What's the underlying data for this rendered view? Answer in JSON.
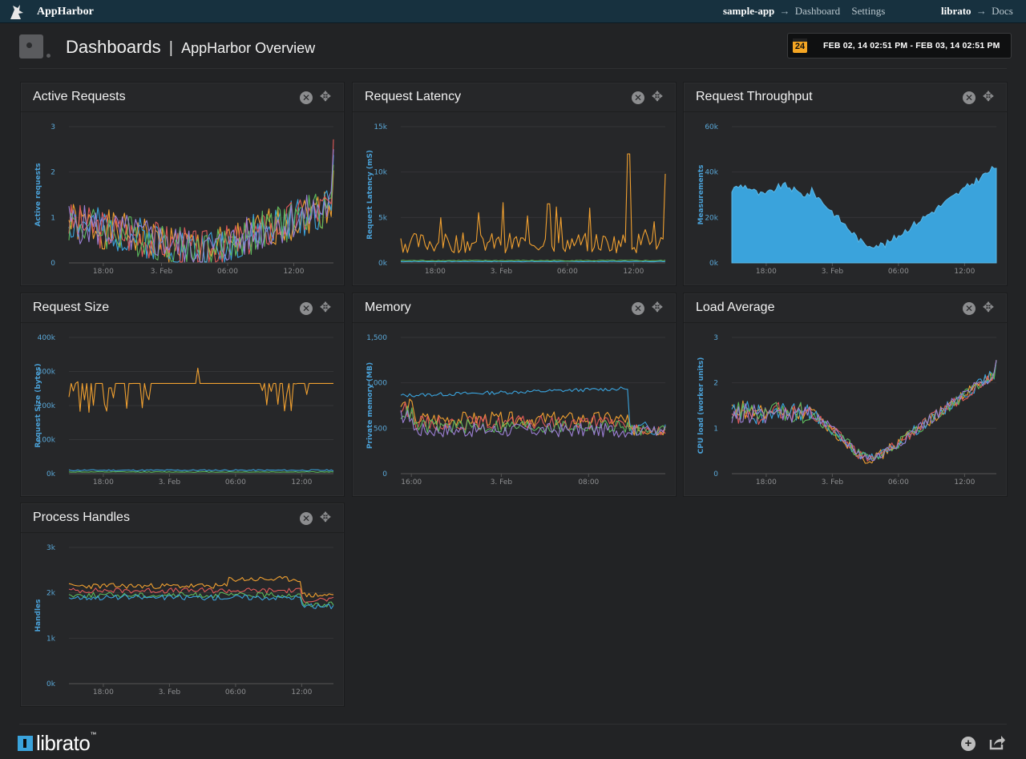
{
  "topbar": {
    "brand": "AppHarbor",
    "app": "sample-app",
    "dashboard_link": "Dashboard",
    "settings_link": "Settings",
    "addon": "librato",
    "docs_link": "Docs",
    "arrow": "→"
  },
  "header": {
    "title": "Dashboards",
    "separator": "|",
    "subtitle": "AppHarbor Overview",
    "calendar_day": "24",
    "date_range": "FEB 02, 14 02:51 PM - FEB 03, 14 02:51 PM"
  },
  "panels": [
    {
      "title": "Active Requests"
    },
    {
      "title": "Request Latency"
    },
    {
      "title": "Request Throughput"
    },
    {
      "title": "Request Size"
    },
    {
      "title": "Memory"
    },
    {
      "title": "Load Average"
    },
    {
      "title": "Process Handles"
    }
  ],
  "footer": {
    "logo": "librato",
    "tm": "™"
  },
  "colors": {
    "topbar_bg": "#17313f",
    "page_bg": "#222325",
    "panel_bg": "#262729",
    "accent_blue": "#4aa0d6",
    "series": [
      "#f0a030",
      "#3aa3dc",
      "#e05a5a",
      "#5cb85c",
      "#9b7fd4",
      "#f08a5d"
    ]
  },
  "icons": [
    "wizard-logo-icon",
    "dashboard-icon",
    "calendar-icon",
    "close-icon",
    "move-icon",
    "add-icon",
    "share-icon"
  ],
  "chart_data": [
    {
      "type": "line",
      "title": "Active Requests",
      "ylabel": "Active requests",
      "yticks": [
        "0",
        "1",
        "2",
        "3"
      ],
      "ylim": [
        0,
        3
      ],
      "xticks": [
        "18:00",
        "3. Feb",
        "06:00",
        "12:00"
      ],
      "xtick_pos": [
        0.13,
        0.35,
        0.6,
        0.85
      ],
      "grid": true,
      "series": [
        {
          "color": "#f0a030",
          "shape": "act",
          "spread": 0.35,
          "seed": 1
        },
        {
          "color": "#3aa3dc",
          "shape": "act",
          "spread": 0.3,
          "seed": 2
        },
        {
          "color": "#e05a5a",
          "shape": "act",
          "spread": 0.3,
          "seed": 3
        },
        {
          "color": "#5cb85c",
          "shape": "act",
          "spread": 0.3,
          "seed": 4
        },
        {
          "color": "#9b7fd4",
          "shape": "act",
          "spread": 0.3,
          "seed": 5
        }
      ]
    },
    {
      "type": "line",
      "title": "Request Latency",
      "ylabel": "Request Latency (mS)",
      "yticks": [
        "0k",
        "5k",
        "10k",
        "15k"
      ],
      "ylim": [
        0,
        15
      ],
      "xticks": [
        "18:00",
        "3. Feb",
        "06:00",
        "12:00"
      ],
      "xtick_pos": [
        0.13,
        0.38,
        0.63,
        0.88
      ],
      "grid": true,
      "series": [
        {
          "color": "#f0a030",
          "shape": "latency",
          "seed": 6
        },
        {
          "color": "#3aa3dc",
          "shape": "flat",
          "level": 0.15,
          "seed": 7
        },
        {
          "color": "#5cb85c",
          "shape": "flat",
          "level": 0.25,
          "seed": 8
        }
      ]
    },
    {
      "type": "area",
      "title": "Request Throughput",
      "ylabel": "Measurements",
      "yticks": [
        "0k",
        "20k",
        "40k",
        "60k"
      ],
      "ylim": [
        0,
        60
      ],
      "xticks": [
        "18:00",
        "3. Feb",
        "06:00",
        "12:00"
      ],
      "xtick_pos": [
        0.13,
        0.38,
        0.63,
        0.88
      ],
      "grid": true,
      "series": [
        {
          "color": "#3aa3dc",
          "shape": "throughput",
          "seed": 9
        }
      ]
    },
    {
      "type": "line",
      "title": "Request Size",
      "ylabel": "Request Size (bytes)",
      "yticks": [
        "0k",
        "100k",
        "200k",
        "300k",
        "400k"
      ],
      "ylim": [
        0,
        400
      ],
      "xticks": [
        "18:00",
        "3. Feb",
        "06:00",
        "12:00"
      ],
      "xtick_pos": [
        0.13,
        0.38,
        0.63,
        0.88
      ],
      "grid": true,
      "series": [
        {
          "color": "#f0a030",
          "shape": "size",
          "seed": 10
        },
        {
          "color": "#3aa3dc",
          "shape": "flat",
          "level": 10,
          "seed": 11
        },
        {
          "color": "#5cb85c",
          "shape": "flat",
          "level": 5,
          "seed": 12
        }
      ]
    },
    {
      "type": "line",
      "title": "Memory",
      "ylabel": "Private memory (MB)",
      "yticks": [
        "0",
        "500",
        "1,000",
        "1,500"
      ],
      "ylim": [
        0,
        1500
      ],
      "xticks": [
        "16:00",
        "3. Feb",
        "08:00"
      ],
      "xtick_pos": [
        0.04,
        0.38,
        0.71
      ],
      "grid": true,
      "series": [
        {
          "color": "#3aa3dc",
          "shape": "memhi",
          "seed": 13
        },
        {
          "color": "#f0a030",
          "shape": "mem",
          "base": 600,
          "seed": 14
        },
        {
          "color": "#e05a5a",
          "shape": "mem",
          "base": 560,
          "seed": 15
        },
        {
          "color": "#5cb85c",
          "shape": "mem",
          "base": 520,
          "seed": 16
        },
        {
          "color": "#9b7fd4",
          "shape": "mem",
          "base": 480,
          "seed": 17
        }
      ]
    },
    {
      "type": "line",
      "title": "Load Average",
      "ylabel": "CPU load (worker units)",
      "yticks": [
        "0",
        "1",
        "2",
        "3"
      ],
      "ylim": [
        0,
        3
      ],
      "xticks": [
        "18:00",
        "3. Feb",
        "06:00",
        "12:00"
      ],
      "xtick_pos": [
        0.13,
        0.38,
        0.63,
        0.88
      ],
      "grid": true,
      "series": [
        {
          "color": "#f0a030",
          "shape": "load",
          "seed": 18
        },
        {
          "color": "#3aa3dc",
          "shape": "load",
          "seed": 19
        },
        {
          "color": "#e05a5a",
          "shape": "load",
          "seed": 20
        },
        {
          "color": "#5cb85c",
          "shape": "load",
          "seed": 21
        },
        {
          "color": "#9b7fd4",
          "shape": "load",
          "seed": 22
        }
      ]
    },
    {
      "type": "line",
      "title": "Process Handles",
      "ylabel": "Handles",
      "yticks": [
        "0k",
        "1k",
        "2k",
        "3k"
      ],
      "ylim": [
        0,
        3
      ],
      "xticks": [
        "18:00",
        "3. Feb",
        "06:00",
        "12:00"
      ],
      "xtick_pos": [
        0.13,
        0.38,
        0.63,
        0.88
      ],
      "grid": true,
      "series": [
        {
          "color": "#f0a030",
          "shape": "handles",
          "base": 2.15,
          "seed": 23
        },
        {
          "color": "#e05a5a",
          "shape": "handles",
          "base": 2.05,
          "seed": 24
        },
        {
          "color": "#5cb85c",
          "shape": "handles",
          "base": 1.95,
          "seed": 25
        },
        {
          "color": "#3aa3dc",
          "shape": "handles",
          "base": 1.9,
          "seed": 26
        }
      ]
    }
  ]
}
